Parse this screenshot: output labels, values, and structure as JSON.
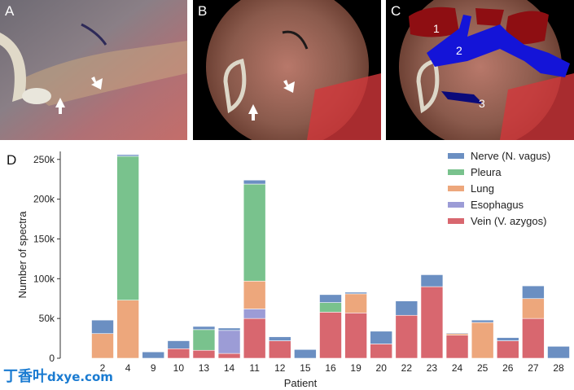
{
  "panels": {
    "a": {
      "label": "A"
    },
    "b": {
      "label": "B"
    },
    "c": {
      "label": "C",
      "region_labels": [
        "1",
        "2",
        "3"
      ]
    }
  },
  "colors": {
    "nerve": "#6b8fc2",
    "pleura": "#79c28d",
    "lung": "#eda77c",
    "esophagus": "#9c9cd6",
    "vein": "#d8676f",
    "overlay_red": "#8e0e12",
    "overlay_blue": "#1414d8",
    "overlay_navy": "#0a0a7a"
  },
  "watermark": {
    "text": "丁香叶",
    "domain": "dxye.com"
  },
  "chart_data": {
    "type": "bar",
    "stacked": true,
    "panel_label": "D",
    "xlabel": "Patient",
    "ylabel": "Number of spectra",
    "ylim": [
      0,
      260000
    ],
    "yticks": [
      0,
      50000,
      100000,
      150000,
      200000,
      250000
    ],
    "ytick_labels": [
      "0",
      "50k",
      "100k",
      "150k",
      "200k",
      "250k"
    ],
    "legend_position": "top-right",
    "categories": [
      "2",
      "4",
      "9",
      "10",
      "13",
      "14",
      "11",
      "12",
      "15",
      "16",
      "19",
      "20",
      "22",
      "23",
      "24",
      "25",
      "26",
      "27",
      "28"
    ],
    "series": [
      {
        "name": "Vein (V. azygos)",
        "key": "vein",
        "values": [
          0,
          0,
          0,
          12000,
          10000,
          6000,
          50000,
          22000,
          0,
          58000,
          57000,
          18000,
          54000,
          90000,
          29000,
          0,
          22000,
          50000,
          0
        ]
      },
      {
        "name": "Esophagus",
        "key": "esophagus",
        "values": [
          0,
          0,
          0,
          0,
          0,
          29000,
          12000,
          0,
          0,
          0,
          0,
          0,
          0,
          0,
          0,
          0,
          0,
          0,
          0
        ]
      },
      {
        "name": "Lung",
        "key": "lung",
        "values": [
          31000,
          73000,
          0,
          0,
          0,
          0,
          35000,
          0,
          0,
          0,
          24000,
          0,
          0,
          0,
          2000,
          45000,
          0,
          25000,
          0
        ]
      },
      {
        "name": "Pleura",
        "key": "pleura",
        "values": [
          0,
          181000,
          0,
          0,
          26000,
          0,
          122000,
          0,
          0,
          12000,
          0,
          0,
          0,
          0,
          0,
          0,
          0,
          0,
          0
        ]
      },
      {
        "name": "Nerve (N. vagus)",
        "key": "nerve",
        "values": [
          17000,
          2000,
          8000,
          10000,
          4000,
          3000,
          5000,
          5000,
          11000,
          10000,
          2000,
          16000,
          18000,
          15000,
          1000,
          3000,
          4000,
          16000,
          15000
        ]
      }
    ],
    "legend_order": [
      "nerve",
      "pleura",
      "lung",
      "esophagus",
      "vein"
    ]
  }
}
